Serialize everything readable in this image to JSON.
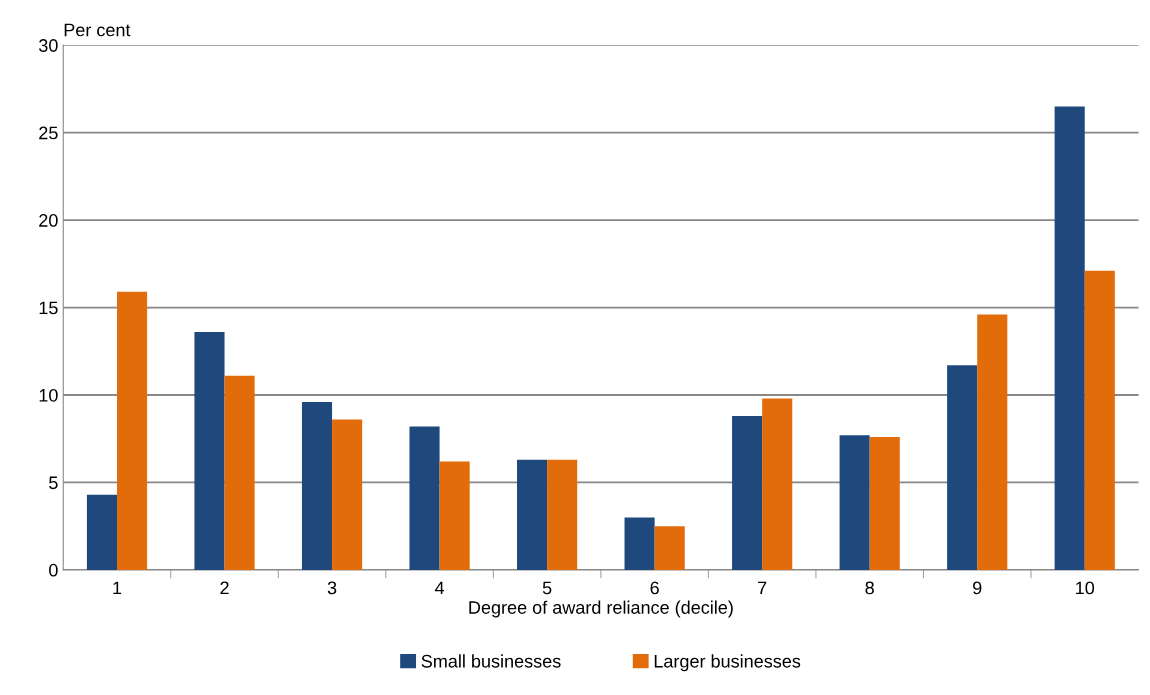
{
  "chart_data": {
    "type": "bar",
    "ylabel": "Per cent",
    "xlabel": "Degree of award reliance (decile)",
    "categories": [
      "1",
      "2",
      "3",
      "4",
      "5",
      "6",
      "7",
      "8",
      "9",
      "10"
    ],
    "series": [
      {
        "name": "Small businesses",
        "color": "#1f497d",
        "values": [
          4.3,
          13.6,
          9.6,
          8.2,
          6.3,
          3.0,
          8.8,
          7.7,
          11.7,
          26.5
        ]
      },
      {
        "name": "Larger businesses",
        "color": "#e36c0a",
        "values": [
          15.9,
          11.1,
          8.6,
          6.2,
          6.3,
          2.5,
          9.8,
          7.6,
          14.6,
          17.1
        ]
      }
    ],
    "ylim": [
      0,
      30
    ],
    "yticks": [
      0,
      5,
      10,
      15,
      20,
      25,
      30
    ],
    "grid": "y",
    "legend": "bottom"
  }
}
